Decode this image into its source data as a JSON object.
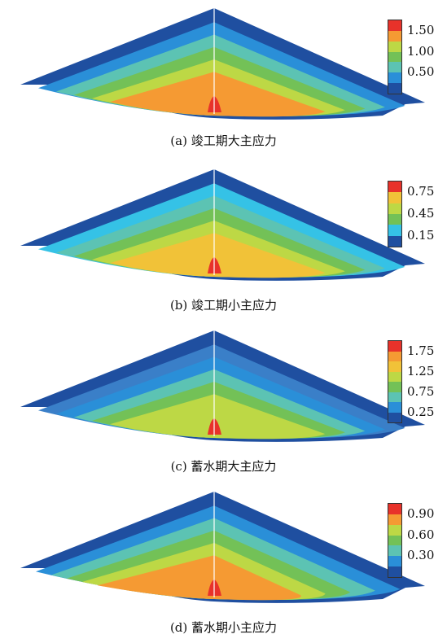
{
  "palette": {
    "navy": "#1f4fa0",
    "blue": "#2a8fd8",
    "cyan": "#35c2e6",
    "teal": "#5cc3b3",
    "green": "#73c157",
    "lime": "#bdd845",
    "yellow": "#f1c238",
    "orange": "#f59a33",
    "red": "#e8322a"
  },
  "panels": [
    {
      "caption": "(a) 竣工期大主应力",
      "legend": {
        "ticks": [
          "1.50",
          "1.00",
          "0.50"
        ],
        "colors": [
          "#e8322a",
          "#f59a33",
          "#bdd845",
          "#73c157",
          "#5cc3b3",
          "#2a8fd8",
          "#1f4fa0"
        ]
      },
      "bands": [
        "#1f4fa0",
        "#2a8fd8",
        "#5cc3b3",
        "#73c157",
        "#bdd845",
        "#f59a33"
      ]
    },
    {
      "caption": "(b) 竣工期小主应力",
      "legend": {
        "ticks": [
          "0.75",
          "0.45",
          "0.15"
        ],
        "colors": [
          "#e8322a",
          "#f1c238",
          "#bdd845",
          "#73c157",
          "#35c2e6",
          "#1f4fa0"
        ]
      },
      "bands": [
        "#1f4fa0",
        "#35c2e6",
        "#5cc3b3",
        "#73c157",
        "#bdd845",
        "#f1c238"
      ]
    },
    {
      "caption": "(c) 蓄水期大主应力",
      "legend": {
        "ticks": [
          "1.75",
          "1.25",
          "0.75",
          "0.25"
        ],
        "colors": [
          "#e8322a",
          "#f59a33",
          "#f1c238",
          "#bdd845",
          "#73c157",
          "#5cc3b3",
          "#2a8fd8",
          "#1f4fa0"
        ]
      },
      "bands": [
        "#1f4fa0",
        "#3a7fc8",
        "#2a8fd8",
        "#5cc3b3",
        "#73c157",
        "#bdd845"
      ]
    },
    {
      "caption": "(d) 蓄水期小主应力",
      "legend": {
        "ticks": [
          "0.90",
          "0.60",
          "0.30"
        ],
        "colors": [
          "#e8322a",
          "#f59a33",
          "#bdd845",
          "#73c157",
          "#5cc3b3",
          "#2a8fd8",
          "#1f4fa0"
        ]
      },
      "bands": [
        "#1f4fa0",
        "#2a8fd8",
        "#5cc3b3",
        "#73c157",
        "#bdd845",
        "#f59a33"
      ]
    }
  ]
}
